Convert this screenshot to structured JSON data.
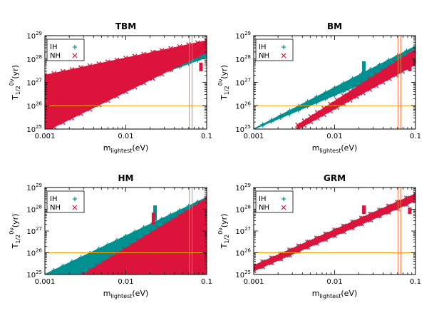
{
  "chart_data": [
    {
      "type": "scatter",
      "title": "TBM",
      "xlabel": "m_lightest(eV)",
      "ylabel": "T_1/2^0ν(yr)",
      "xscale": "log",
      "yscale": "log",
      "xlim": [
        0.001,
        0.1
      ],
      "ylim": [
        1e+25,
        1e+29
      ],
      "xticks": [
        "0.001",
        "0.01",
        "0.1"
      ],
      "yticks": [
        "10^25",
        "10^26",
        "10^27",
        "10^28",
        "10^29"
      ],
      "legend_position": "top-left",
      "series": [
        {
          "name": "IH",
          "marker": "plus",
          "color": "#009090",
          "band": {
            "x": [
              0.001,
              0.1
            ],
            "ylow": [
              4e+25,
              1.2e+28
            ],
            "yhigh": [
              1.5e+27,
              5e+28
            ]
          }
        },
        {
          "name": "NH",
          "marker": "cross",
          "color": "#dc143c",
          "band": {
            "x": [
              0.001,
              0.1
            ],
            "ylow": [
              8e+24,
              2e+28
            ],
            "yhigh": [
              2e+27,
              6e+28
            ]
          },
          "spikes": [
            {
              "x": 0.023,
              "y": [
                1.5e+28,
                2.3e+28
              ]
            },
            {
              "x": 0.085,
              "y": [
                3e+27,
                7e+27
              ]
            }
          ]
        }
      ],
      "hline": {
        "y": 1e+26,
        "color": "#ffa000"
      },
      "vlines": [
        {
          "x": 0.061,
          "color": "#ff7f50"
        },
        {
          "x": 0.066,
          "color": "#ff7f50"
        }
      ]
    },
    {
      "type": "scatter",
      "title": "BM",
      "xlabel": "m_lightest(eV)",
      "ylabel": "T_1/2^0ν(yr)",
      "xscale": "log",
      "yscale": "log",
      "xlim": [
        0.001,
        0.1
      ],
      "ylim": [
        1e+25,
        1e+29
      ],
      "xticks": [
        "0.001",
        "0.01",
        "0.1"
      ],
      "yticks": [
        "10^25",
        "10^26",
        "10^27",
        "10^28",
        "10^29"
      ],
      "legend_position": "top-left",
      "series": [
        {
          "name": "IH",
          "marker": "plus",
          "color": "#009090",
          "band": {
            "x": [
              0.001,
              0.1
            ],
            "ylow": [
              1e+25,
              8e+27
            ],
            "yhigh": [
              1e+25,
              3.5e+28
            ]
          },
          "spikes": [
            {
              "x": 0.023,
              "y": [
                1e+27,
                8e+27
              ]
            }
          ]
        },
        {
          "name": "NH",
          "marker": "cross",
          "color": "#dc143c",
          "band": {
            "x": [
              0.0035,
              0.1
            ],
            "ylow": [
              1e+25,
              6e+27
            ],
            "yhigh": [
              1.5e+25,
              2.5e+28
            ]
          },
          "spikes": [
            {
              "x": 0.085,
              "y": [
                3e+27,
                8e+27
              ]
            }
          ]
        }
      ],
      "hline": {
        "y": 1e+26,
        "color": "#ffa000"
      },
      "vlines": [
        {
          "x": 0.061,
          "color": "#ff7f50"
        },
        {
          "x": 0.066,
          "color": "#ff7f50"
        }
      ]
    },
    {
      "type": "scatter",
      "title": "HM",
      "xlabel": "m_lightest(eV)",
      "ylabel": "T_1/2^0ν(yr)",
      "xscale": "log",
      "yscale": "log",
      "xlim": [
        0.001,
        0.1
      ],
      "ylim": [
        1e+25,
        1e+29
      ],
      "xticks": [
        "0.001",
        "0.01",
        "0.1"
      ],
      "yticks": [
        "10^25",
        "10^26",
        "10^27",
        "10^28",
        "10^29"
      ],
      "legend_position": "top-left",
      "series": [
        {
          "name": "IH",
          "marker": "plus",
          "color": "#009090",
          "band": {
            "x": [
              0.001,
              0.1
            ],
            "ylow": [
              1e+25,
              1e+25
            ],
            "yhigh": [
              1e+25,
              3.5e+28
            ]
          },
          "spikes": [
            {
              "x": 0.023,
              "y": [
                3e+27,
                1.5e+28
              ]
            }
          ]
        },
        {
          "name": "NH",
          "marker": "cross",
          "color": "#dc143c",
          "band": {
            "x": [
              0.003,
              0.1
            ],
            "ylow": [
              1e+25,
              1e+25
            ],
            "yhigh": [
              1e+25,
              3e+28
            ]
          },
          "spikes": [
            {
              "x": 0.022,
              "y": [
                2e+27,
                7e+27
              ]
            }
          ]
        }
      ],
      "hline": {
        "y": 1e+26,
        "color": "#ffa000"
      },
      "vlines": [
        {
          "x": 0.061,
          "color": "#ff7f50"
        },
        {
          "x": 0.066,
          "color": "#ff7f50"
        }
      ]
    },
    {
      "type": "scatter",
      "title": "GRM",
      "xlabel": "m_lightest(eV)",
      "ylabel": "T_1/2^0ν(yr)",
      "xscale": "log",
      "yscale": "log",
      "xlim": [
        0.001,
        0.1
      ],
      "ylim": [
        1e+25,
        1e+29
      ],
      "xticks": [
        "0.001",
        "0.01",
        "0.1"
      ],
      "yticks": [
        "10^25",
        "10^26",
        "10^27",
        "10^28",
        "10^29"
      ],
      "legend_position": "top-left",
      "series": [
        {
          "name": "IH",
          "marker": "plus",
          "color": "#009090",
          "band": {
            "x": [
              0.001,
              0.1
            ],
            "ylow": [
              1.5e+25,
              2.5e+28
            ],
            "yhigh": [
              2.5e+25,
              5e+28
            ]
          }
        },
        {
          "name": "NH",
          "marker": "cross",
          "color": "#dc143c",
          "band": {
            "x": [
              0.001,
              0.1
            ],
            "ylow": [
              1.5e+25,
              2.5e+28
            ],
            "yhigh": [
              2.5e+25,
              5e+28
            ]
          },
          "spikes": [
            {
              "x": 0.023,
              "y": [
                6e+27,
                1.5e+28
              ]
            },
            {
              "x": 0.085,
              "y": [
                6e+27,
                1.2e+28
              ]
            }
          ]
        }
      ],
      "hline": {
        "y": 1e+26,
        "color": "#ffa000"
      },
      "vlines": [
        {
          "x": 0.061,
          "color": "#ff7f50"
        },
        {
          "x": 0.066,
          "color": "#ff7f50"
        }
      ]
    }
  ]
}
